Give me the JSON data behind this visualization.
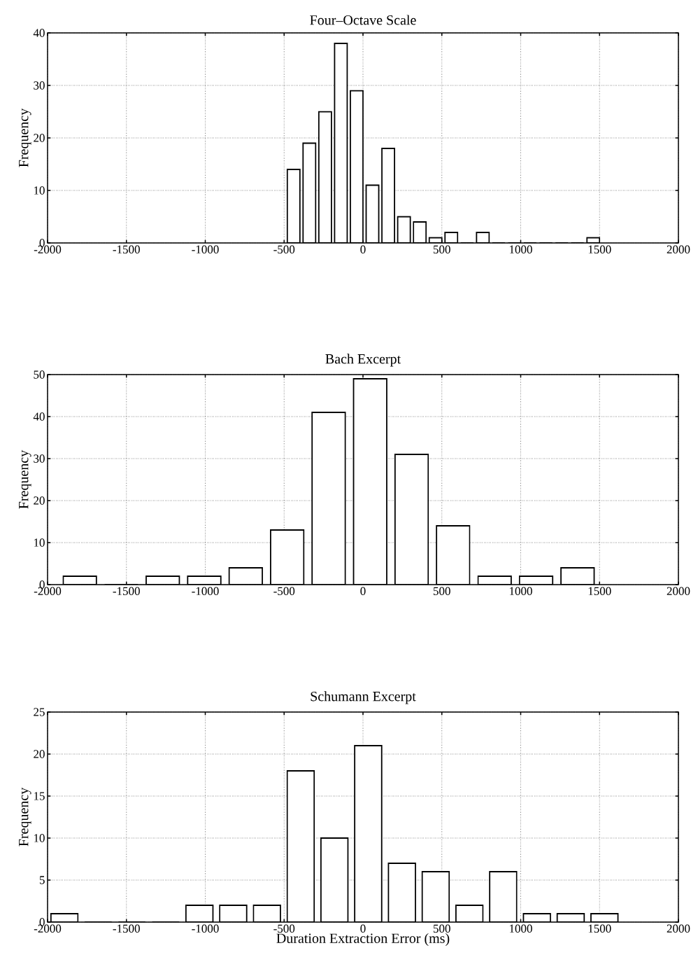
{
  "chart_data": [
    {
      "type": "histogram",
      "title": "Four–Octave Scale",
      "ylabel": "Frequency",
      "bins": [
        -490,
        -390,
        -290,
        -190,
        -90,
        10,
        110,
        210,
        310,
        410,
        510,
        610,
        710,
        810,
        910,
        1010,
        1110,
        1210,
        1310,
        1410,
        1510
      ],
      "values": [
        14,
        19,
        25,
        38,
        29,
        11,
        18,
        5,
        4,
        1,
        2,
        0,
        2,
        0,
        0,
        0,
        0,
        0,
        0,
        1
      ],
      "xlim": [
        -2000,
        2000
      ],
      "ylim": [
        0,
        40
      ],
      "xticks": [
        -2000,
        -1500,
        -1000,
        -500,
        0,
        500,
        1000,
        1500,
        2000
      ],
      "yticks": [
        0,
        10,
        20,
        30,
        40
      ],
      "grid": true
    },
    {
      "type": "histogram",
      "title": "Bach Excerpt",
      "ylabel": "Frequency",
      "bins": [
        -1927,
        -1664,
        -1401,
        -1138,
        -875,
        -612,
        -349,
        -86,
        177,
        440,
        703,
        966,
        1229,
        1492
      ],
      "values": [
        2,
        0,
        2,
        2,
        4,
        13,
        41,
        49,
        31,
        14,
        2,
        2,
        4
      ],
      "xlim": [
        -2000,
        2000
      ],
      "ylim": [
        0,
        50
      ],
      "xticks": [
        -2000,
        -1500,
        -1000,
        -500,
        0,
        500,
        1000,
        1500,
        2000
      ],
      "yticks": [
        0,
        10,
        20,
        30,
        40,
        50
      ],
      "grid": true
    },
    {
      "type": "histogram",
      "title": "Schumann Excerpt",
      "ylabel": "Frequency",
      "xlabel": "Duration Extraction Error (ms)",
      "bins": [
        -2000,
        -1786,
        -1572,
        -1358,
        -1144,
        -930,
        -716,
        -502,
        -288,
        -74,
        140,
        354,
        568,
        782,
        996,
        1210,
        1424,
        1638
      ],
      "values": [
        1,
        0,
        0,
        0,
        2,
        2,
        2,
        18,
        10,
        21,
        7,
        6,
        2,
        6,
        1,
        1,
        1
      ],
      "xlim": [
        -2000,
        2000
      ],
      "ylim": [
        0,
        25
      ],
      "xticks": [
        -2000,
        -1500,
        -1000,
        -500,
        0,
        500,
        1000,
        1500,
        2000
      ],
      "yticks": [
        0,
        5,
        10,
        15,
        20,
        25
      ],
      "grid": true
    }
  ]
}
